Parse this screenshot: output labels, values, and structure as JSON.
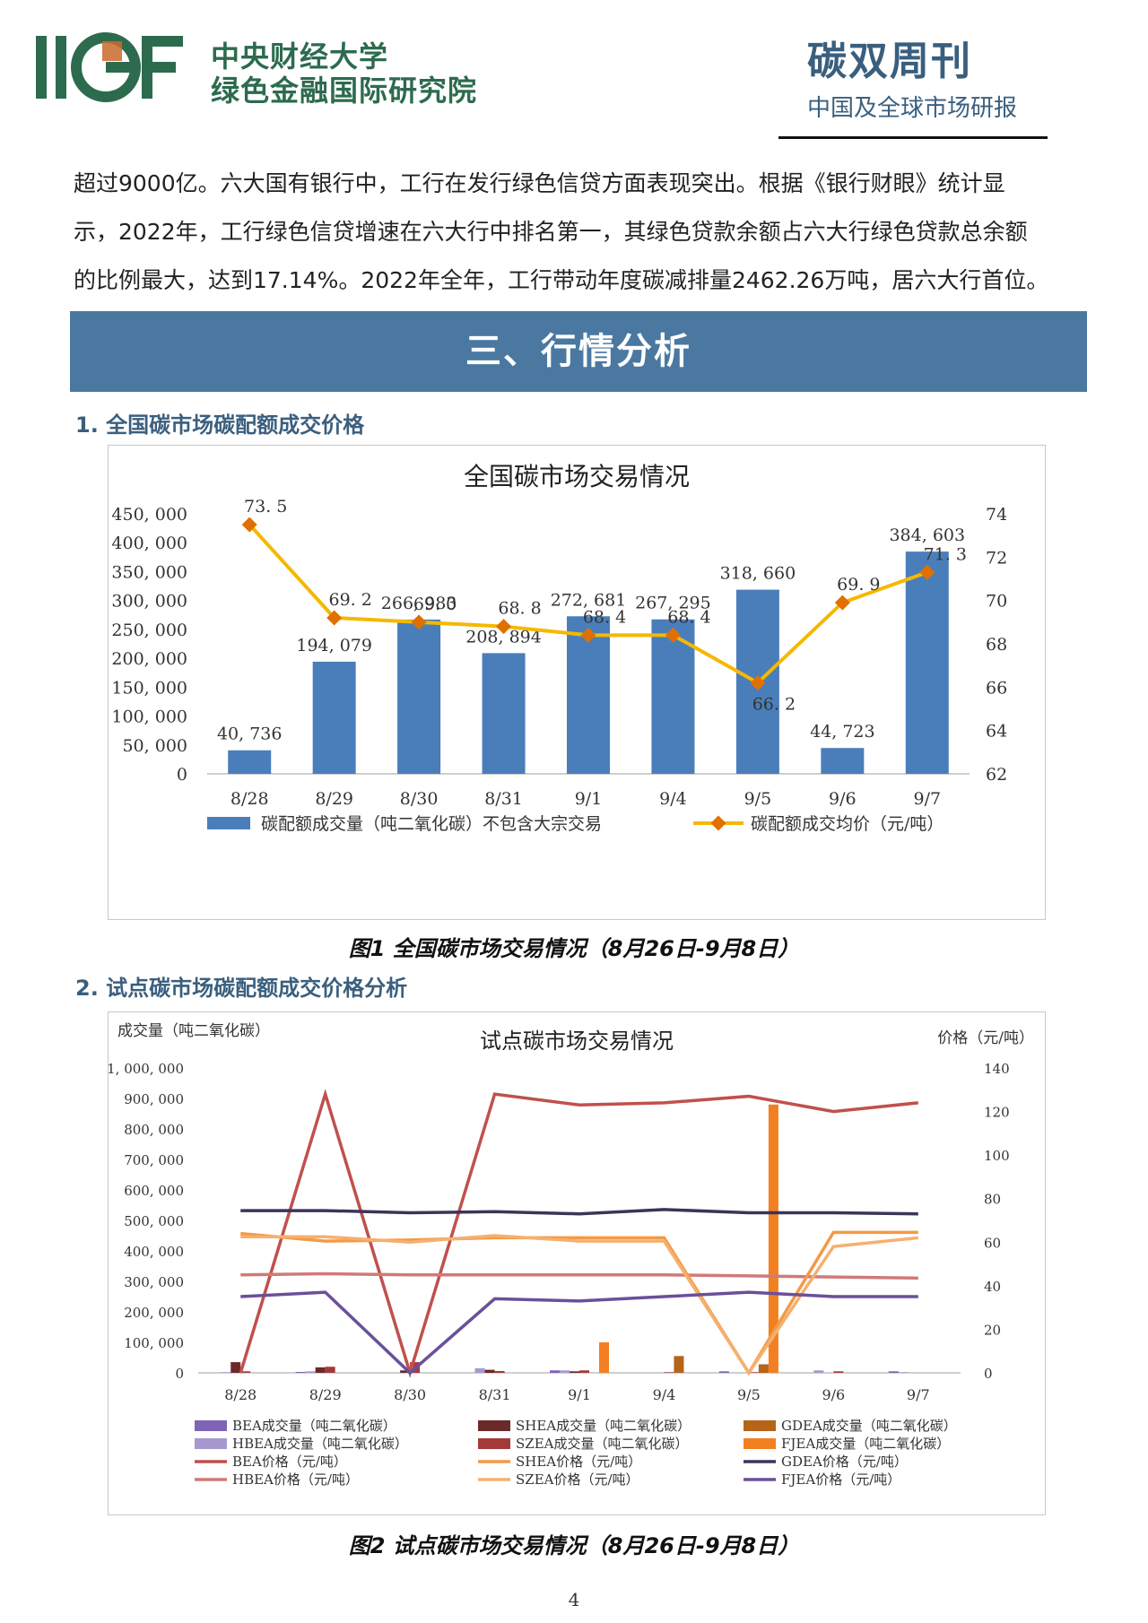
{
  "header": {
    "logo_text": "IIGF",
    "org_line1": "中央财经大学",
    "org_line2": "绿色金融国际研究院",
    "pub_title": "碳双周刊",
    "pub_subtitle": "中国及全球市场研报"
  },
  "paragraph": [
    "超过9000亿。六大国有银行中，工行在发行绿色信贷方面表现突出。根据《银行财眼》统计显",
    "示，2022年，工行绿色信贷增速在六大行中排名第一，其绿色贷款余额占六大行绿色贷款总余额",
    "的比例最大，达到17.14%。2022年全年，工行带动年度碳减排量2462.26万吨，居六大行首位。"
  ],
  "banner": "三、行情分析",
  "section1": "1. 全国碳市场碳配额成交价格",
  "caption1": "图1 全国碳市场交易情况（8月26日-9月8日）",
  "section2": "2. 试点碳市场碳配额成交价格分析",
  "caption2": "图2 试点碳市场交易情况（8月26日-9月8日）",
  "page_number": "4",
  "chart_data": [
    {
      "type": "bar",
      "title": "全国碳市场交易情况",
      "categories": [
        "8/28",
        "8/29",
        "8/30",
        "8/31",
        "9/1",
        "9/4",
        "9/5",
        "9/6",
        "9/7"
      ],
      "series": [
        {
          "name": "碳配额成交量（吨二氧化碳）不包含大宗交易",
          "kind": "bar",
          "axis": "left",
          "color": "#4a7ebb",
          "values": [
            40736,
            194079,
            266983,
            208894,
            272681,
            267295,
            318660,
            44723,
            384603
          ],
          "labels": [
            "40, 736",
            "194, 079",
            "266, 983",
            "208, 894",
            "272, 681",
            "267, 295",
            "318, 660",
            "44, 723",
            "384, 603"
          ]
        },
        {
          "name": "碳配额成交均价（元/吨）",
          "kind": "line",
          "axis": "right",
          "color": "#f5b800",
          "marker": "#e07000",
          "values": [
            73.5,
            69.2,
            69.0,
            68.8,
            68.4,
            68.4,
            66.2,
            69.9,
            71.3
          ],
          "labels": [
            "73. 5",
            "69. 2",
            "69. 0",
            "68. 8",
            "68. 4",
            "68. 4",
            "66. 2",
            "69. 9",
            "71. 3"
          ]
        }
      ],
      "left_ticks": [
        "450, 000",
        "400, 000",
        "350, 000",
        "300, 000",
        "250, 000",
        "200, 000",
        "150, 000",
        "100, 000",
        "50, 000",
        "0"
      ],
      "right_ticks": [
        "74",
        "72",
        "70",
        "68",
        "66",
        "64",
        "62"
      ],
      "ylim": [
        0,
        450000
      ],
      "y2lim": [
        62,
        74
      ],
      "legend_position": "bottom"
    },
    {
      "type": "bar",
      "title": "试点碳市场交易情况",
      "ylabel": "成交量（吨二氧化碳）",
      "y2label": "价格（元/吨）",
      "categories": [
        "8/28",
        "8/29",
        "8/30",
        "8/31",
        "9/1",
        "9/4",
        "9/5",
        "9/6",
        "9/7"
      ],
      "ylim": [
        0,
        1000000
      ],
      "y2lim": [
        0,
        140
      ],
      "left_ticks": [
        "1, 000, 000",
        "900, 000",
        "800, 000",
        "700, 000",
        "600, 000",
        "500, 000",
        "400, 000",
        "300, 000",
        "200, 000",
        "100, 000",
        "0"
      ],
      "right_ticks": [
        "140",
        "120",
        "100",
        "80",
        "60",
        "40",
        "20",
        "0"
      ],
      "bar_series": [
        {
          "name": "BEA成交量（吨二氧化碳）",
          "color": "#7f63b8",
          "values": [
            0,
            3000,
            0,
            0,
            8000,
            0,
            5000,
            0,
            5000
          ]
        },
        {
          "name": "HBEA成交量（吨二氧化碳）",
          "color": "#a898d0",
          "values": [
            2000,
            5000,
            0,
            15000,
            8000,
            0,
            0,
            8000,
            2000
          ]
        },
        {
          "name": "SHEA成交量（吨二氧化碳）",
          "color": "#6b2a2a",
          "values": [
            35000,
            18000,
            8000,
            10000,
            5000,
            0,
            0,
            0,
            0
          ]
        },
        {
          "name": "SZEA成交量（吨二氧化碳）",
          "color": "#a33a3a",
          "values": [
            5000,
            20000,
            35000,
            6000,
            8000,
            2000,
            2000,
            5000,
            0
          ]
        },
        {
          "name": "GDEA成交量（吨二氧化碳）",
          "color": "#b5641a",
          "values": [
            0,
            0,
            0,
            0,
            0,
            55000,
            28000,
            0,
            0
          ]
        },
        {
          "name": "FJEA成交量（吨二氧化碳）",
          "color": "#f28020",
          "values": [
            0,
            0,
            0,
            0,
            100000,
            0,
            880000,
            0,
            0
          ]
        }
      ],
      "line_series": [
        {
          "name": "BEA价格（元/吨）",
          "color": "#c0504d",
          "values": [
            0,
            128,
            0,
            128,
            123,
            124,
            127,
            120,
            124
          ]
        },
        {
          "name": "HBEA价格（元/吨）",
          "color": "#d07a78",
          "values": [
            45,
            45.5,
            45,
            45,
            45,
            45,
            44.5,
            44,
            43.5
          ]
        },
        {
          "name": "SHEA价格（元/吨）",
          "color": "#f39a45",
          "values": [
            64,
            60.5,
            61,
            62,
            62,
            62,
            0,
            64.5,
            64.5
          ]
        },
        {
          "name": "SZEA价格（元/吨）",
          "color": "#f5b070",
          "values": [
            62.5,
            62.5,
            60,
            63,
            60.5,
            60.5,
            0,
            58,
            62
          ]
        },
        {
          "name": "GDEA价格（元/吨）",
          "color": "#3d3458",
          "values": [
            74.5,
            74.5,
            73.5,
            74,
            73,
            75,
            73.5,
            73.5,
            73
          ]
        },
        {
          "name": "FJEA价格（元/吨）",
          "color": "#6a509a",
          "values": [
            35,
            37,
            0,
            34,
            33,
            35,
            37,
            35,
            35
          ]
        }
      ],
      "legend_position": "bottom"
    }
  ]
}
